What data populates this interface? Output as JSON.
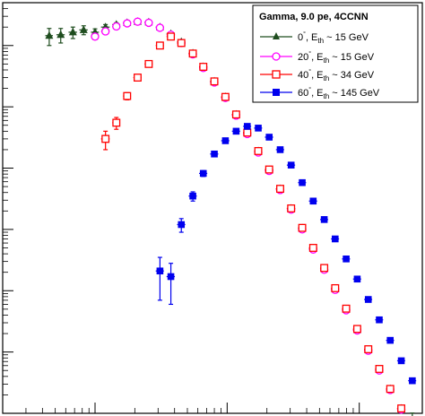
{
  "chart_data": {
    "type": "scatter",
    "title": "",
    "xlabel": "",
    "ylabel": "",
    "xscale": "log",
    "yscale": "log",
    "xlim": [
      2,
      3000
    ],
    "ylim": [
      1e-06,
      5
    ],
    "grid": false,
    "legend_position": "top-right",
    "legend_title": "Gamma, 9.0 pe, 4CCNN",
    "series": [
      {
        "legend": {
          "angle": "0",
          "deg": "°",
          "sep": ", E",
          "sub": "th",
          "cond": " ~ 15 GeV"
        },
        "color": "#1f4d1f",
        "marker": "triangle-filled",
        "x": [
          4.5,
          5.5,
          6.8,
          8.2,
          10,
          12,
          14.5,
          17.5,
          21,
          25.5,
          31,
          37.5,
          45,
          55,
          66,
          80,
          97,
          117,
          142,
          172,
          208,
          252,
          305,
          370,
          448,
          543,
          657,
          796,
          965,
          1170,
          1417,
          1715,
          2080,
          2520
        ],
        "y": [
          1.45,
          1.5,
          1.65,
          1.8,
          1.65,
          2.0,
          2.2,
          2.35,
          2.45,
          2.4,
          2.0,
          1.55,
          1.15,
          0.75,
          0.45,
          0.26,
          0.145,
          0.075,
          0.038,
          0.019,
          0.0093,
          0.0046,
          0.0022,
          0.00105,
          0.00049,
          0.00023,
          0.000107,
          4.95e-05,
          2.3e-05,
          1.08e-05,
          5.2e-06,
          2.5e-06,
          1.2e-06,
          5.8e-07
        ],
        "xerr": [
          0.3,
          0.4,
          0.5,
          0.6,
          0.7,
          0.9,
          1.0,
          1.2,
          1.5,
          1.8,
          2.2,
          2.7,
          3.2,
          3.9,
          4.7,
          5.7,
          6.9,
          8.3,
          10,
          12,
          15,
          18,
          22,
          26,
          32,
          38,
          46,
          56,
          68,
          82,
          99,
          120,
          146,
          176
        ],
        "yerr": [
          0.45,
          0.4,
          0.35,
          0.3,
          0.22,
          0.2,
          0.15,
          0.12,
          0.1,
          0.08,
          0.07,
          0.05,
          0.04,
          0.03,
          0.02,
          0.012,
          0.007,
          0.004,
          0.002,
          0.001,
          0.0005,
          0.00025,
          0.00012,
          6e-05,
          3e-05,
          1.4e-05,
          6.5e-06,
          3e-06,
          1.5e-06,
          7e-07,
          3.5e-07,
          1.7e-07,
          9e-08,
          5e-08
        ]
      },
      {
        "legend": {
          "angle": "20",
          "deg": "°",
          "sep": ", E",
          "sub": "th",
          "cond": " ~ 15 GeV"
        },
        "color": "#ff00ff",
        "marker": "circle-open",
        "x": [
          10,
          12,
          14.5,
          17.5,
          21,
          25.5,
          31,
          37.5,
          45,
          55,
          66,
          80,
          97,
          117,
          142,
          172,
          208,
          252,
          305,
          370,
          448,
          543,
          657,
          796,
          965,
          1170,
          1417,
          1715,
          2080
        ],
        "y": [
          1.4,
          1.7,
          2.05,
          2.3,
          2.45,
          2.35,
          1.95,
          1.5,
          1.1,
          0.72,
          0.43,
          0.25,
          0.14,
          0.072,
          0.036,
          0.018,
          0.009,
          0.0044,
          0.0021,
          0.001,
          0.00047,
          0.00022,
          0.000103,
          4.8e-05,
          2.25e-05,
          1.05e-05,
          5e-06,
          2.4e-06,
          1.15e-06
        ],
        "xerr": [
          0.7,
          0.9,
          1.0,
          1.2,
          1.5,
          1.8,
          2.2,
          2.7,
          3.2,
          3.9,
          4.7,
          5.7,
          6.9,
          8.3,
          10,
          12,
          15,
          18,
          22,
          26,
          32,
          38,
          46,
          56,
          68,
          82,
          99,
          120,
          146
        ],
        "yerr": [
          0.15,
          0.12,
          0.1,
          0.08,
          0.07,
          0.06,
          0.05,
          0.04,
          0.03,
          0.02,
          0.012,
          0.007,
          0.004,
          0.002,
          0.001,
          0.0005,
          0.00025,
          0.00012,
          6e-05,
          3e-05,
          1.4e-05,
          6.5e-06,
          3e-06,
          1.5e-06,
          7e-07,
          3.5e-07,
          1.7e-07,
          9e-08,
          5e-08
        ]
      },
      {
        "legend": {
          "angle": "40",
          "deg": "°",
          "sep": ", E",
          "sub": "th",
          "cond": " ~ 34 GeV"
        },
        "color": "#ff0000",
        "marker": "square-open",
        "x": [
          12,
          14.5,
          17.5,
          21,
          25.5,
          31,
          37.5,
          45,
          55,
          66,
          80,
          97,
          117,
          142,
          172,
          208,
          252,
          305,
          370,
          448,
          543,
          657,
          796,
          965,
          1170,
          1417,
          1715,
          2080
        ],
        "y": [
          0.03,
          0.055,
          0.15,
          0.3,
          0.5,
          1.0,
          1.4,
          1.1,
          0.74,
          0.45,
          0.26,
          0.145,
          0.075,
          0.038,
          0.019,
          0.0095,
          0.0046,
          0.0022,
          0.00106,
          0.0005,
          0.000235,
          0.00011,
          5.1e-05,
          2.38e-05,
          1.11e-05,
          5.3e-06,
          2.5e-06,
          1.2e-06
        ],
        "xerr": [
          0.9,
          1.0,
          1.2,
          1.5,
          1.8,
          2.2,
          2.7,
          3.2,
          3.9,
          4.7,
          5.7,
          6.9,
          8.3,
          10,
          12,
          15,
          18,
          22,
          26,
          32,
          38,
          46,
          56,
          68,
          82,
          99,
          120,
          146
        ],
        "yerr": [
          0.01,
          0.012,
          0.02,
          0.03,
          0.04,
          0.05,
          0.06,
          0.04,
          0.03,
          0.02,
          0.012,
          0.007,
          0.004,
          0.002,
          0.001,
          0.0005,
          0.00025,
          0.00012,
          6e-05,
          3e-05,
          1.4e-05,
          6.5e-06,
          3e-06,
          1.5e-06,
          7e-07,
          3.5e-07,
          1.7e-07,
          9e-08
        ]
      },
      {
        "legend": {
          "angle": "60",
          "deg": "°",
          "sep": ", E",
          "sub": "th",
          "cond": " ~ 145 GeV"
        },
        "color": "#0000ee",
        "marker": "square-filled",
        "x": [
          31,
          37.5,
          45,
          55,
          66,
          80,
          97,
          117,
          142,
          172,
          208,
          252,
          305,
          370,
          448,
          543,
          657,
          796,
          965,
          1170,
          1417,
          1715,
          2080,
          2520
        ],
        "y": [
          0.00021,
          0.00017,
          0.0012,
          0.0035,
          0.0082,
          0.017,
          0.028,
          0.04,
          0.048,
          0.045,
          0.032,
          0.02,
          0.0112,
          0.0058,
          0.0029,
          0.00145,
          0.0007,
          0.00033,
          0.000155,
          7.2e-05,
          3.35e-05,
          1.55e-05,
          7.2e-06,
          3.4e-06
        ],
        "xerr": [
          2.2,
          2.7,
          3.2,
          3.9,
          4.7,
          5.7,
          6.9,
          8.3,
          10,
          12,
          15,
          18,
          22,
          26,
          32,
          38,
          46,
          56,
          68,
          82,
          99,
          120,
          146,
          176
        ],
        "yerr": [
          0.00014,
          0.00011,
          0.0003,
          0.0006,
          0.0009,
          0.0015,
          0.002,
          0.002,
          0.002,
          0.0018,
          0.0012,
          0.0008,
          0.0004,
          0.0002,
          0.0001,
          5e-05,
          2.5e-05,
          1.2e-05,
          6e-06,
          3e-06,
          1.5e-06,
          8e-07,
          4e-07,
          2e-07
        ]
      }
    ]
  }
}
